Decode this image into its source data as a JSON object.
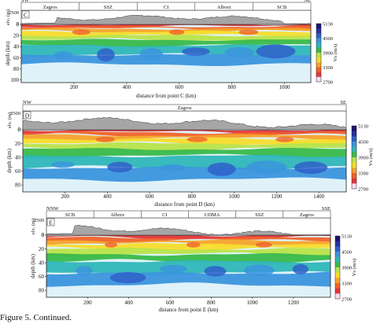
{
  "caption": "Figure 5. Continued.",
  "colors": {
    "terrain_fill": "#a6a6a6",
    "terrain_stroke": "#333333",
    "scale": [
      "#f7dcf3",
      "#e3373a",
      "#f0632a",
      "#f6a32b",
      "#f7dc2c",
      "#b8e34a",
      "#38b94a",
      "#2fb6b8",
      "#3b95dd",
      "#2f60c9",
      "#2a2fa6",
      "#1a1470"
    ]
  },
  "chart_data": [
    {
      "id": "C",
      "type": "heatmap",
      "panel_letter": "C",
      "left_label": "SW",
      "right_label": "NE",
      "segments": [
        "Zagros",
        "SSZ",
        "CI",
        "Alborz",
        "SCB"
      ],
      "xlabel": "distance from point C (km)",
      "ylabel": "depth (km)",
      "elev_label": "elv. (m)",
      "elev_ticks": [
        "2500",
        "0"
      ],
      "xlim": [
        0,
        1100
      ],
      "x_ticks": [
        200,
        400,
        600,
        800,
        1000
      ],
      "y_ticks": [
        0,
        20,
        40,
        60,
        80,
        100
      ],
      "ylim": [
        0,
        105
      ],
      "colorbar_label": "Vs (m/s)",
      "colorbar_ticks": [
        "5130",
        "4500",
        "3900",
        "3300",
        "2700"
      ]
    },
    {
      "id": "D",
      "type": "heatmap",
      "panel_letter": "D",
      "left_label": "NW",
      "right_label": "SE",
      "segments": [
        "Zagros"
      ],
      "xlabel": "distance from point D (km)",
      "ylabel": "depth (km)",
      "elev_label": "elv. (m)",
      "elev_ticks": [
        "2500",
        "0"
      ],
      "xlim": [
        0,
        1530
      ],
      "x_ticks": [
        200,
        400,
        600,
        800,
        1000,
        1200,
        1400
      ],
      "y_ticks": [
        0,
        20,
        40,
        60,
        80
      ],
      "ylim": [
        0,
        90
      ],
      "colorbar_label": "Vs (m/s)",
      "colorbar_ticks": [
        "5130",
        "4500",
        "3900",
        "3300",
        "2700"
      ]
    },
    {
      "id": "E",
      "type": "heatmap",
      "panel_letter": "E",
      "left_label": "NNW",
      "right_label": "SSE",
      "segments": [
        "SCB",
        "Alborz",
        "CI",
        "UDMA",
        "SSZ",
        "Zagros"
      ],
      "xlabel": "distance from point E (km)",
      "ylabel": "depth (km)",
      "elev_label": "elv. (m)",
      "elev_ticks": [
        "2500",
        "0"
      ],
      "xlim": [
        0,
        1380
      ],
      "x_ticks": [
        200,
        400,
        600,
        800,
        1000,
        1200
      ],
      "y_ticks": [
        0,
        20,
        40,
        60,
        80
      ],
      "ylim": [
        0,
        90
      ],
      "colorbar_label": "Vs (m/s)",
      "colorbar_ticks": [
        "5130",
        "4500",
        "3900",
        "3300",
        "2700"
      ]
    }
  ]
}
